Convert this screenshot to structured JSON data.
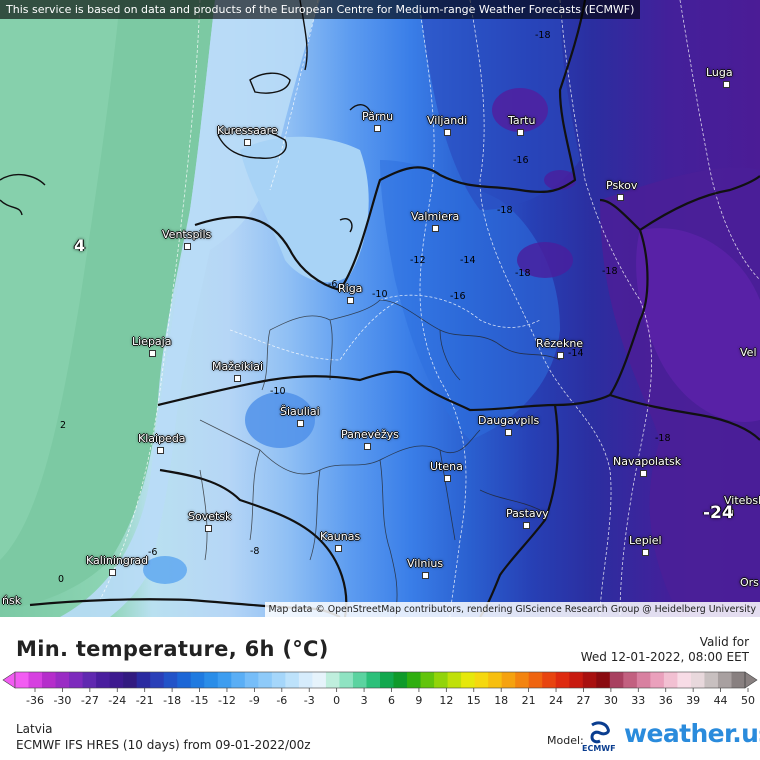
{
  "attribution_top": "This service is based on data and products of the European Centre for Medium-range Weather Forecasts (ECMWF)",
  "attribution_bottom": "Map data © OpenStreetMap contributors, rendering GIScience Research Group @ Heidelberg University",
  "cities": [
    "Luga",
    "Pärnu",
    "Viljandi",
    "Tartu",
    "Kuressaare",
    "Pskov",
    "Valmiera",
    "Ventspils",
    "Riga",
    "Liepaja",
    "Rēzekne",
    "Mažeikiai",
    "Šiauliai",
    "Daugavpils",
    "Klaipeda",
    "Panevėžys",
    "Navapolatsk",
    "Utena",
    "Vitebsk",
    "Sovetsk",
    "Pastavy",
    "Kaunas",
    "Lepiel",
    "Kaliningrad",
    "Vilnius",
    "Vel",
    "Ors",
    "ńsk"
  ],
  "big_values": [
    "4",
    "-24"
  ],
  "contour_labels": [
    "-18",
    "-16",
    "-18",
    "-12",
    "-14",
    "-6",
    "-10",
    "-16",
    "-18",
    "-18",
    "-14",
    "-10",
    "-18",
    "2",
    "-6",
    "-8",
    "0"
  ],
  "legend": {
    "title": "Min. temperature, 6h (°C)",
    "valid_label": "Valid for",
    "valid_time": "Wed 12-01-2022, 08:00 EET",
    "ticks": [
      "-36",
      "-30",
      "-27",
      "-24",
      "-21",
      "-18",
      "-15",
      "-12",
      "-9",
      "-6",
      "-3",
      "0",
      "3",
      "6",
      "9",
      "12",
      "15",
      "18",
      "21",
      "24",
      "27",
      "30",
      "33",
      "36",
      "39",
      "44",
      "50"
    ],
    "colors": [
      "#f25cf2",
      "#d640e0",
      "#b52ecb",
      "#9a2cc4",
      "#7d2bbd",
      "#6029b0",
      "#4a1e9e",
      "#3d1a8f",
      "#321a80",
      "#2a2aa0",
      "#2a3fb8",
      "#2253c8",
      "#1c66d6",
      "#1f7ae0",
      "#2a8de8",
      "#3d9df0",
      "#5aaef5",
      "#76bdf8",
      "#8ecaf9",
      "#a5d6fa",
      "#bde2fb",
      "#d6ecfc",
      "#e6f3fb",
      "#bfeedd",
      "#8fe3c2",
      "#5bd3a0",
      "#2cc07a",
      "#12a84e",
      "#0f9a2a",
      "#2fae10",
      "#62c40c",
      "#92d40a",
      "#c0e00a",
      "#e6e80c",
      "#f5d810",
      "#f7bf10",
      "#f5a210",
      "#f38410",
      "#ef6410",
      "#e84410",
      "#de2a10",
      "#c81a10",
      "#a81010",
      "#8a0a10",
      "#a84060",
      "#c26080",
      "#d880a0",
      "#eaa0bc",
      "#f2c0d2",
      "#f8dce6",
      "#e8d8dc",
      "#c8c0c0",
      "#a8a0a0",
      "#888080"
    ],
    "region": "Latvia",
    "model": "ECMWF IFS HRES (10 days) from 09-01-2022/00z",
    "model_label": "Model:",
    "brand": "weather.us",
    "ecmwf_label": "ECMWF"
  }
}
